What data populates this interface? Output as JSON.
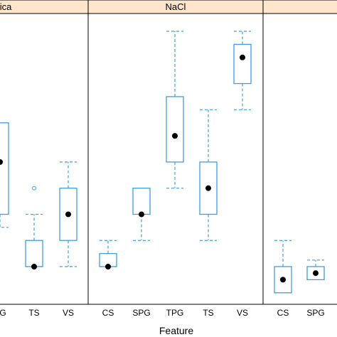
{
  "chart_data": {
    "type": "boxplot",
    "xlabel": "Feature",
    "colors": {
      "strip": "#ffe5cc",
      "box": "#3f9ee0",
      "median": "#000000",
      "outlier": "#3f9ee0",
      "frame": "#000000"
    },
    "panels": [
      {
        "title": "ica",
        "categories": [
          "PG",
          "TS",
          "VS"
        ],
        "boxes": [
          {
            "whisker_low": 0.79,
            "q1": 0.8,
            "median": 0.84,
            "q3": 0.87,
            "whisker_high": null,
            "outliers": []
          },
          {
            "whisker_low": 0.76,
            "q1": 0.76,
            "median": 0.76,
            "q3": 0.78,
            "whisker_high": 0.8,
            "outliers": [
              0.82
            ]
          },
          {
            "whisker_low": 0.76,
            "q1": 0.78,
            "median": 0.8,
            "q3": 0.82,
            "whisker_high": 0.84,
            "outliers": []
          }
        ]
      },
      {
        "title": "NaCl",
        "categories": [
          "CS",
          "SPG",
          "TPG",
          "TS",
          "VS"
        ],
        "boxes": [
          {
            "whisker_low": 0.76,
            "q1": 0.76,
            "median": 0.76,
            "q3": 0.77,
            "whisker_high": 0.78,
            "outliers": []
          },
          {
            "whisker_low": 0.78,
            "q1": 0.8,
            "median": 0.8,
            "q3": 0.82,
            "whisker_high": null,
            "outliers": []
          },
          {
            "whisker_low": 0.82,
            "q1": 0.84,
            "median": 0.86,
            "q3": 0.89,
            "whisker_high": 0.94,
            "outliers": []
          },
          {
            "whisker_low": 0.78,
            "q1": 0.8,
            "median": 0.82,
            "q3": 0.84,
            "whisker_high": 0.88,
            "outliers": []
          },
          {
            "whisker_low": 0.88,
            "q1": 0.9,
            "median": 0.92,
            "q3": 0.93,
            "whisker_high": 0.94,
            "outliers": []
          }
        ]
      },
      {
        "title": "",
        "categories": [
          "CS",
          "SPG"
        ],
        "boxes": [
          {
            "whisker_low": 0.74,
            "q1": 0.74,
            "median": 0.75,
            "q3": 0.76,
            "whisker_high": 0.78,
            "outliers": []
          },
          {
            "whisker_low": 0.75,
            "q1": 0.75,
            "median": 0.755,
            "q3": 0.76,
            "whisker_high": 0.765,
            "outliers": []
          }
        ]
      }
    ]
  }
}
